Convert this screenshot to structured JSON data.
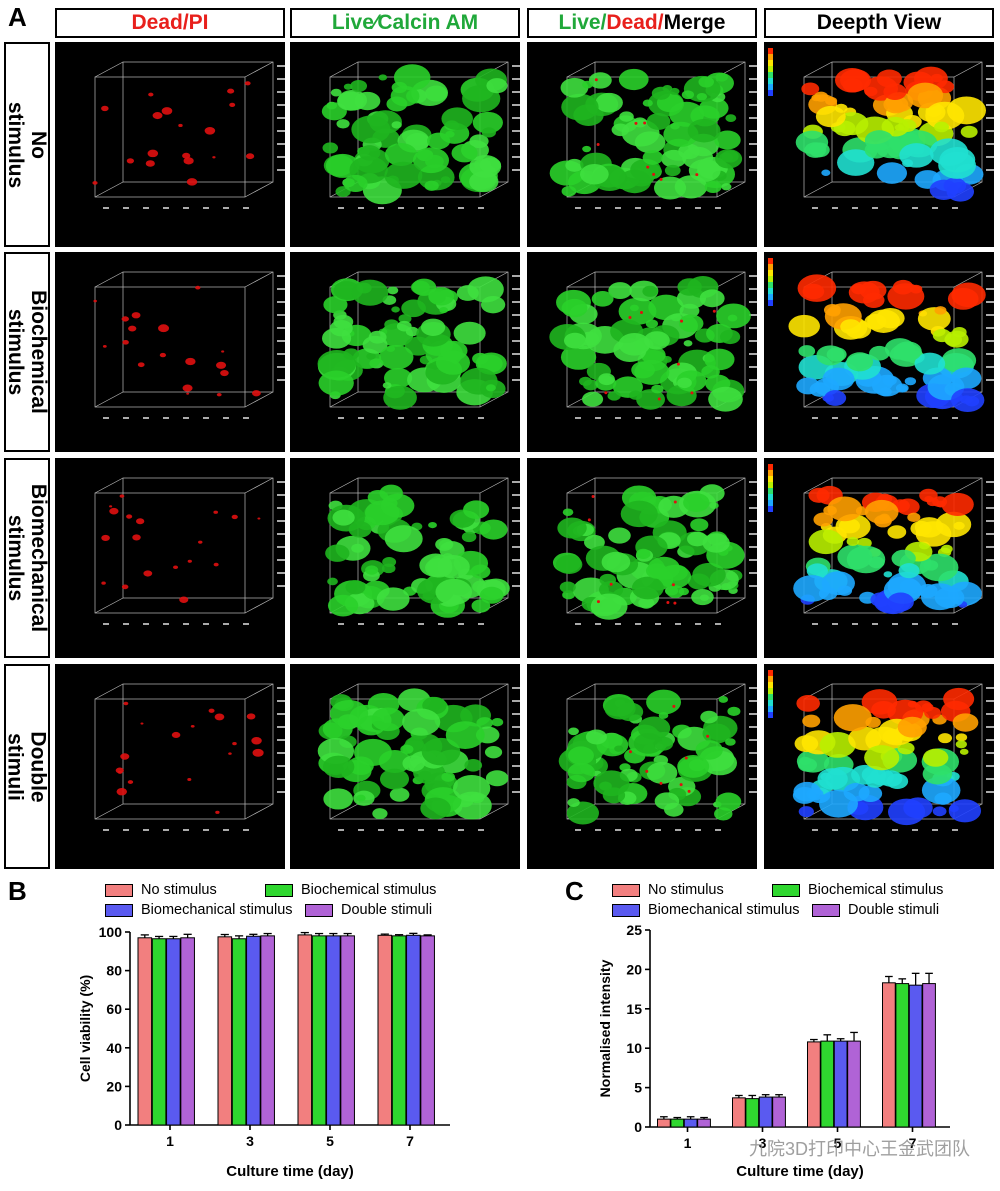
{
  "panelA": {
    "letter": "A",
    "columns": [
      {
        "parts": [
          {
            "text": "Dead/PI",
            "color": "#e8201c"
          }
        ]
      },
      {
        "parts": [
          {
            "text": "Live⁄Calcin AM",
            "color": "#20a83a"
          }
        ]
      },
      {
        "parts": [
          {
            "text": "Live/",
            "color": "#20a83a"
          },
          {
            "text": "Dead/",
            "color": "#e8201c"
          },
          {
            "text": "Merge",
            "color": "#000000"
          }
        ]
      },
      {
        "parts": [
          {
            "text": "Deepth View",
            "color": "#000000"
          }
        ]
      }
    ],
    "rows": [
      {
        "label": "No\nstimulus"
      },
      {
        "label": "Biochemical\nstimulus"
      },
      {
        "label": "Biomechanical\nstimulus"
      },
      {
        "label": "Double\nstimuli"
      }
    ]
  },
  "panelB": {
    "letter": "B"
  },
  "panelC": {
    "letter": "C"
  },
  "colors": {
    "no": "#f27f7f",
    "bio": "#2fd72f",
    "mech": "#5a5af0",
    "double": "#b063d6"
  },
  "chart_data": [
    {
      "type": "bar",
      "panel": "B",
      "categories": [
        "1",
        "3",
        "5",
        "7"
      ],
      "xlabel": "Culture time (day)",
      "ylabel": "Cell viability (%)",
      "ylim": [
        0,
        100
      ],
      "yticks": [
        0,
        20,
        40,
        60,
        80,
        100
      ],
      "legend": [
        "No stimulus",
        "Biochemical stimulus",
        "Biomechanical stimulus",
        "Double stimuli"
      ],
      "legend_position": "top",
      "series": [
        {
          "name": "No stimulus",
          "values": [
            97.0,
            97.5,
            98.5,
            98.3
          ],
          "errors": [
            1.5,
            1.2,
            1.2,
            0.6
          ]
        },
        {
          "name": "Biochemical stimulus",
          "values": [
            96.5,
            96.5,
            98.0,
            98.0
          ],
          "errors": [
            1.2,
            1.5,
            1.2,
            0.6
          ]
        },
        {
          "name": "Biomechanical stimulus",
          "values": [
            96.5,
            97.8,
            98.0,
            98.3
          ],
          "errors": [
            1.2,
            1.0,
            1.2,
            1.0
          ]
        },
        {
          "name": "Double stimuli",
          "values": [
            97.0,
            98.0,
            98.0,
            98.0
          ],
          "errors": [
            1.8,
            1.2,
            1.2,
            0.5
          ]
        }
      ]
    },
    {
      "type": "bar",
      "panel": "C",
      "categories": [
        "1",
        "3",
        "5",
        "7"
      ],
      "xlabel": "Culture time (day)",
      "ylabel": "Normalised intensity",
      "ylim": [
        0,
        25
      ],
      "yticks": [
        0,
        5,
        10,
        15,
        20,
        25
      ],
      "legend": [
        "No stimulus",
        "Biochemical stimulus",
        "Biomechanical stimulus",
        "Double stimuli"
      ],
      "legend_position": "top",
      "series": [
        {
          "name": "No stimulus",
          "values": [
            1.0,
            3.7,
            10.8,
            18.3
          ],
          "errors": [
            0.3,
            0.3,
            0.3,
            0.8
          ]
        },
        {
          "name": "Biochemical stimulus",
          "values": [
            1.0,
            3.6,
            10.9,
            18.2
          ],
          "errors": [
            0.2,
            0.4,
            0.8,
            0.6
          ]
        },
        {
          "name": "Biomechanical stimulus",
          "values": [
            1.0,
            3.8,
            10.9,
            18.0
          ],
          "errors": [
            0.3,
            0.3,
            0.3,
            1.5
          ]
        },
        {
          "name": "Double stimuli",
          "values": [
            1.0,
            3.8,
            10.9,
            18.2
          ],
          "errors": [
            0.2,
            0.3,
            1.1,
            1.3
          ]
        }
      ]
    }
  ],
  "watermark": "九院3D打印中心王金武团队"
}
